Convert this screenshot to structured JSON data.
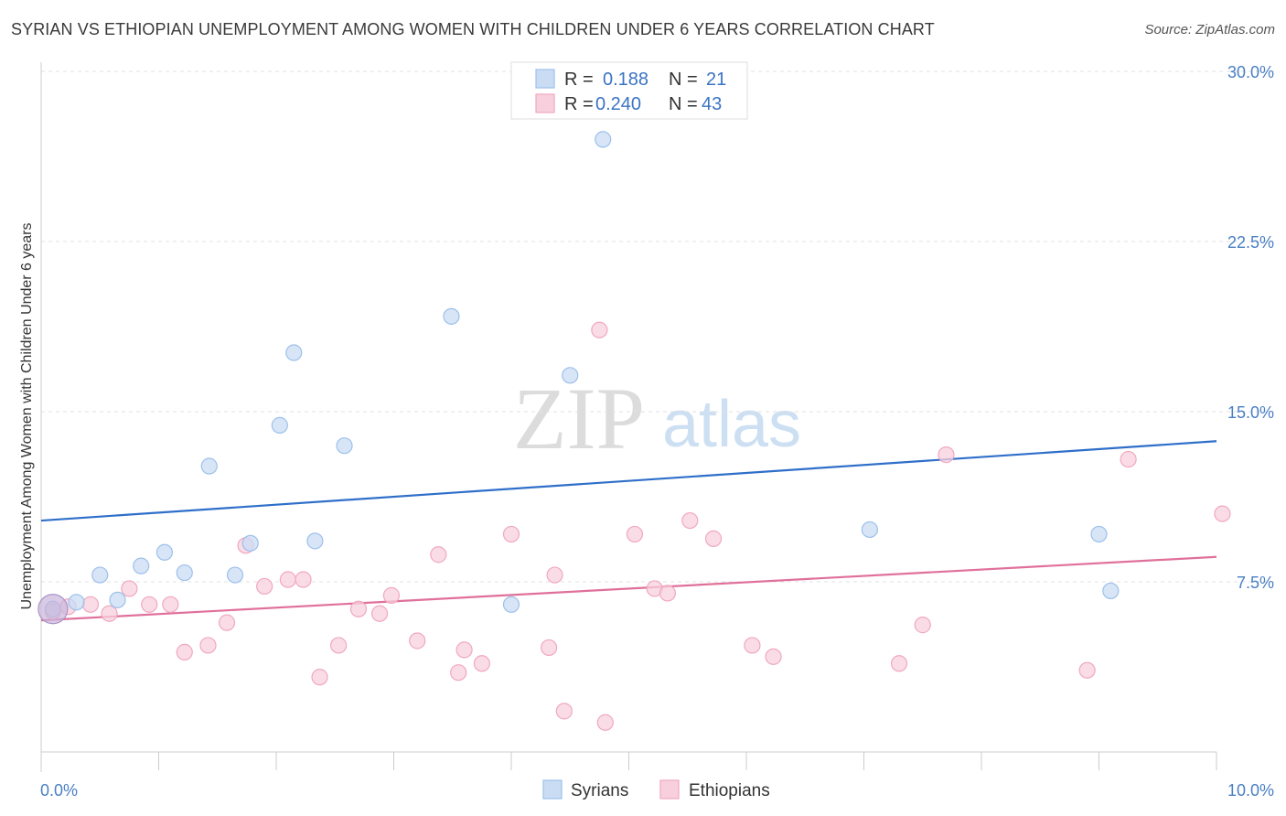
{
  "title": "SYRIAN VS ETHIOPIAN UNEMPLOYMENT AMONG WOMEN WITH CHILDREN UNDER 6 YEARS CORRELATION CHART",
  "source": "Source: ZipAtlas.com",
  "watermark": {
    "zip": "ZIP",
    "atlas": "atlas"
  },
  "legend_top": [
    {
      "r_label": "R =",
      "r_value": "0.188",
      "n_label": "N =",
      "n_value": "21"
    },
    {
      "r_label": "R =",
      "r_value": "0.240",
      "n_label": "N =",
      "n_value": "43"
    }
  ],
  "chart_data": {
    "type": "scatter",
    "ylabel": "Unemployment Among Women with Children Under 6 years",
    "xlim": [
      0,
      10
    ],
    "ylim": [
      0,
      30
    ],
    "x_tick_labels": [
      "0.0%",
      "10.0%"
    ],
    "y_ticks": [
      7.5,
      15.0,
      22.5,
      30.0
    ],
    "y_tick_labels": [
      "7.5%",
      "15.0%",
      "22.5%",
      "30.0%"
    ],
    "grid": true,
    "legend_position": "bottom-center",
    "series": [
      {
        "name": "Syrians",
        "color": "#9dc0ea",
        "fill": "#c9dcf4",
        "line_color": "#2f6fc9",
        "trend": [
          [
            0,
            10.2
          ],
          [
            10,
            13.7
          ]
        ],
        "points": [
          [
            0.1,
            6.3
          ],
          [
            0.3,
            6.6
          ],
          [
            0.5,
            7.8
          ],
          [
            0.65,
            6.7
          ],
          [
            0.85,
            8.2
          ],
          [
            1.05,
            8.8
          ],
          [
            1.22,
            7.9
          ],
          [
            1.43,
            12.6
          ],
          [
            1.65,
            7.8
          ],
          [
            1.78,
            9.2
          ],
          [
            2.03,
            14.4
          ],
          [
            2.15,
            17.6
          ],
          [
            2.33,
            9.3
          ],
          [
            2.58,
            13.5
          ],
          [
            3.49,
            19.2
          ],
          [
            4.0,
            6.5
          ],
          [
            4.5,
            16.6
          ],
          [
            4.78,
            27.0
          ],
          [
            7.05,
            9.8
          ],
          [
            9.0,
            9.6
          ],
          [
            9.1,
            7.1
          ]
        ]
      },
      {
        "name": "Ethiopians",
        "color": "#f0a8c0",
        "fill": "#f8d0dd",
        "line_color": "#e0709a",
        "trend": [
          [
            0,
            5.8
          ],
          [
            10,
            8.6
          ]
        ],
        "points": [
          [
            0.1,
            6.2
          ],
          [
            0.23,
            6.4
          ],
          [
            0.42,
            6.5
          ],
          [
            0.58,
            6.1
          ],
          [
            0.75,
            7.2
          ],
          [
            0.92,
            6.5
          ],
          [
            1.1,
            6.5
          ],
          [
            1.22,
            4.4
          ],
          [
            1.42,
            4.7
          ],
          [
            1.58,
            5.7
          ],
          [
            1.74,
            9.1
          ],
          [
            1.9,
            7.3
          ],
          [
            2.1,
            7.6
          ],
          [
            2.23,
            7.6
          ],
          [
            2.37,
            3.3
          ],
          [
            2.53,
            4.7
          ],
          [
            2.7,
            6.3
          ],
          [
            2.88,
            6.1
          ],
          [
            2.98,
            6.9
          ],
          [
            3.2,
            4.9
          ],
          [
            3.38,
            8.7
          ],
          [
            3.55,
            3.5
          ],
          [
            3.6,
            4.5
          ],
          [
            3.75,
            3.9
          ],
          [
            4.0,
            9.6
          ],
          [
            4.32,
            4.6
          ],
          [
            4.37,
            7.8
          ],
          [
            4.45,
            1.8
          ],
          [
            4.75,
            18.6
          ],
          [
            4.8,
            1.3
          ],
          [
            5.05,
            9.6
          ],
          [
            5.22,
            7.2
          ],
          [
            5.33,
            7.0
          ],
          [
            5.52,
            10.2
          ],
          [
            5.72,
            9.4
          ],
          [
            6.05,
            4.7
          ],
          [
            6.23,
            4.2
          ],
          [
            7.3,
            3.9
          ],
          [
            7.5,
            5.6
          ],
          [
            7.7,
            13.1
          ],
          [
            8.9,
            3.6
          ],
          [
            9.25,
            12.9
          ],
          [
            10.05,
            10.5
          ]
        ]
      }
    ],
    "highlight_point": {
      "series": "Syrians",
      "x": 0.1,
      "y": 6.3
    }
  },
  "legend_bottom": [
    {
      "label": "Syrians",
      "color": "#c9dcf4",
      "border": "#9dc0ea"
    },
    {
      "label": "Ethiopians",
      "color": "#f8d0dd",
      "border": "#f0a8c0"
    }
  ]
}
